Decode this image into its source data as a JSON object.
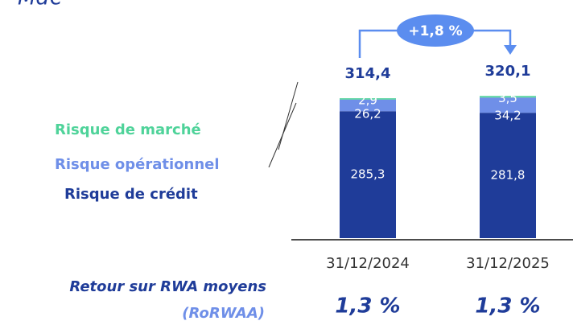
{
  "chart_data": {
    "type": "stacked_bar",
    "unit": "Md€",
    "categories": [
      "31/12/2024",
      "31/12/2025"
    ],
    "series": [
      {
        "name": "Risque de crédit",
        "color": "#1f3c99",
        "values": [
          285.3,
          281.8
        ],
        "value_labels": [
          "285,3",
          "281,8"
        ]
      },
      {
        "name": "Risque opérationnel",
        "color": "#6f8fe8",
        "values": [
          26.2,
          34.2
        ],
        "value_labels": [
          "26,2",
          "34,2"
        ]
      },
      {
        "name": "Risque de marché",
        "color": "#4fd39a",
        "values": [
          2.9,
          3.5
        ],
        "value_labels": [
          "2,9",
          "3,5"
        ]
      }
    ],
    "totals": [
      314.4,
      320.1
    ],
    "total_labels": [
      "314,4",
      "320,1"
    ],
    "growth_label": "+1,8 %",
    "ratio": {
      "label": "Retour sur RWA moyens",
      "sublabel": "(RoRWAA)",
      "values": [
        1.3,
        1.3
      ],
      "value_labels": [
        "1,3 %",
        "1,3 %"
      ]
    }
  }
}
